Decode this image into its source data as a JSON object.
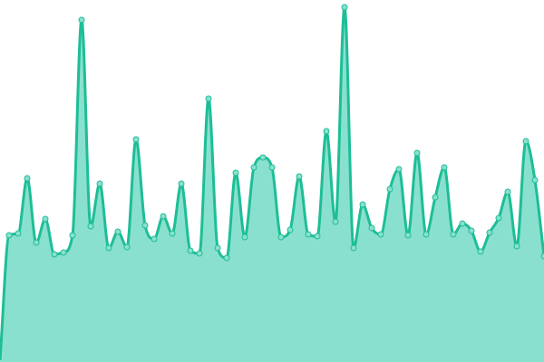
{
  "chart_data": {
    "type": "area",
    "title": "",
    "xlabel": "",
    "ylabel": "",
    "ylim": [
      0,
      400
    ],
    "grid": false,
    "smooth": true,
    "markers": true,
    "x": [
      0,
      1,
      2,
      3,
      4,
      5,
      6,
      7,
      8,
      9,
      10,
      11,
      12,
      13,
      14,
      15,
      16,
      17,
      18,
      19,
      20,
      21,
      22,
      23,
      24,
      25,
      26,
      27,
      28,
      29,
      30,
      31,
      32,
      33,
      34,
      35,
      36,
      37,
      38,
      39,
      40,
      41,
      42,
      43,
      44,
      45,
      46,
      47,
      48,
      49,
      50,
      51,
      52,
      53,
      54,
      55,
      56,
      57,
      58,
      59,
      60
    ],
    "values": [
      2,
      140,
      142,
      203,
      132,
      158,
      119,
      121,
      140,
      378,
      150,
      197,
      126,
      144,
      127,
      246,
      151,
      136,
      161,
      142,
      197,
      123,
      120,
      291,
      126,
      115,
      209,
      138,
      215,
      226,
      215,
      138,
      146,
      205,
      141,
      139,
      255,
      155,
      392,
      126,
      174,
      148,
      141,
      191,
      213,
      140,
      231,
      141,
      182,
      215,
      141,
      153,
      145,
      122,
      143,
      159,
      188,
      128,
      244,
      201,
      117
    ],
    "colors": {
      "line": "#1dbe96",
      "fill": "#8ae0cf",
      "marker": "#8ae0cf"
    }
  }
}
